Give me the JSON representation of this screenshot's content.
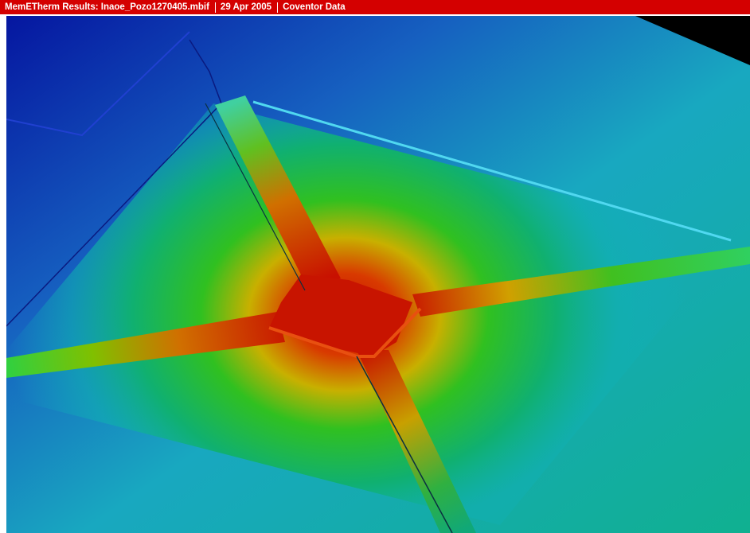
{
  "header": {
    "title": "MemETherm Results: Inaoe_Pozo1270405.mbif",
    "date": "29 Apr 2005",
    "source": "Coventor Data"
  }
}
